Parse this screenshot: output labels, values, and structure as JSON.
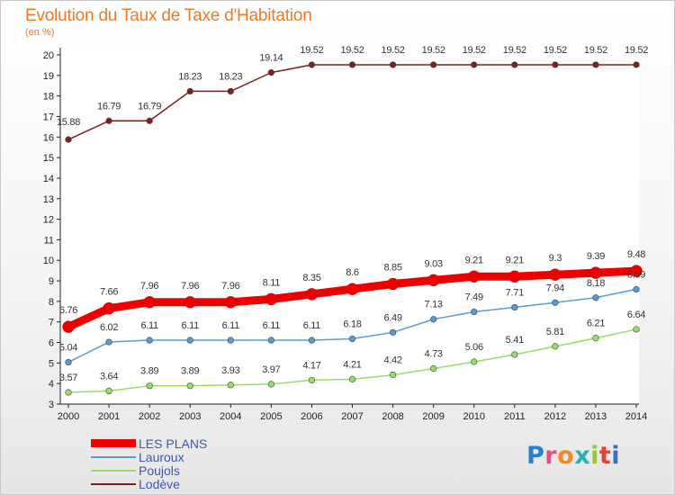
{
  "chart_data": {
    "type": "line",
    "title": "Evolution du Taux de Taxe d'Habitation",
    "subtitle": "(en %)",
    "xlabel": "",
    "ylabel": "",
    "x": [
      "2000",
      "2001",
      "2002",
      "2003",
      "2004",
      "2005",
      "2006",
      "2007",
      "2008",
      "2009",
      "2010",
      "2011",
      "2012",
      "2013",
      "2014"
    ],
    "ylim": [
      3,
      20
    ],
    "yticks": [
      "3",
      "4",
      "5",
      "6",
      "7",
      "8",
      "9",
      "10",
      "11",
      "12",
      "13",
      "14",
      "15",
      "16",
      "17",
      "18",
      "19",
      "20"
    ],
    "grid": false,
    "legend_position": "bottom-left",
    "series": [
      {
        "name": "LES PLANS",
        "color": "#ee0000",
        "values": [
          6.76,
          7.66,
          7.96,
          7.96,
          7.96,
          8.11,
          8.35,
          8.6,
          8.85,
          9.03,
          9.21,
          9.21,
          9.3,
          9.39,
          9.48
        ],
        "labels": [
          "6.76",
          "7.66",
          "7.96",
          "7.96",
          "7.96",
          "8.11",
          "8.35",
          "8.6",
          "8.85",
          "9.03",
          "9.21",
          "9.21",
          "9.3",
          "9.39",
          "9.48"
        ]
      },
      {
        "name": "Lauroux",
        "color": "#5b9bd5",
        "values": [
          5.04,
          6.02,
          6.11,
          6.11,
          6.11,
          6.11,
          6.11,
          6.18,
          6.49,
          7.13,
          7.49,
          7.71,
          7.94,
          8.18,
          8.59
        ],
        "labels": [
          "5.04",
          "6.02",
          "6.11",
          "6.11",
          "6.11",
          "6.11",
          "6.11",
          "6.18",
          "6.49",
          "7.13",
          "7.49",
          "7.71",
          "7.94",
          "8.18",
          "8.59"
        ]
      },
      {
        "name": "Poujols",
        "color": "#99dd66",
        "values": [
          3.57,
          3.64,
          3.89,
          3.89,
          3.93,
          3.97,
          4.17,
          4.21,
          4.42,
          4.73,
          5.06,
          5.41,
          5.81,
          6.21,
          6.64
        ],
        "labels": [
          "3.57",
          "3.64",
          "3.89",
          "3.89",
          "3.93",
          "3.97",
          "4.17",
          "4.21",
          "4.42",
          "4.73",
          "5.06",
          "5.41",
          "5.81",
          "6.21",
          "6.64"
        ]
      },
      {
        "name": "Lodève",
        "color": "#7a2020",
        "values": [
          15.88,
          16.79,
          16.79,
          18.23,
          18.23,
          19.14,
          19.52,
          19.52,
          19.52,
          19.52,
          19.52,
          19.52,
          19.52,
          19.52,
          19.52
        ],
        "labels": [
          "15.88",
          "16.79",
          "16.79",
          "18.23",
          "18.23",
          "19.14",
          "19.52",
          "19.52",
          "19.52",
          "19.52",
          "19.52",
          "19.52",
          "19.52",
          "19.52",
          "19.52"
        ]
      }
    ]
  },
  "logo": {
    "letters": [
      "P",
      "r",
      "o",
      "x",
      "i",
      "t",
      "i"
    ]
  }
}
